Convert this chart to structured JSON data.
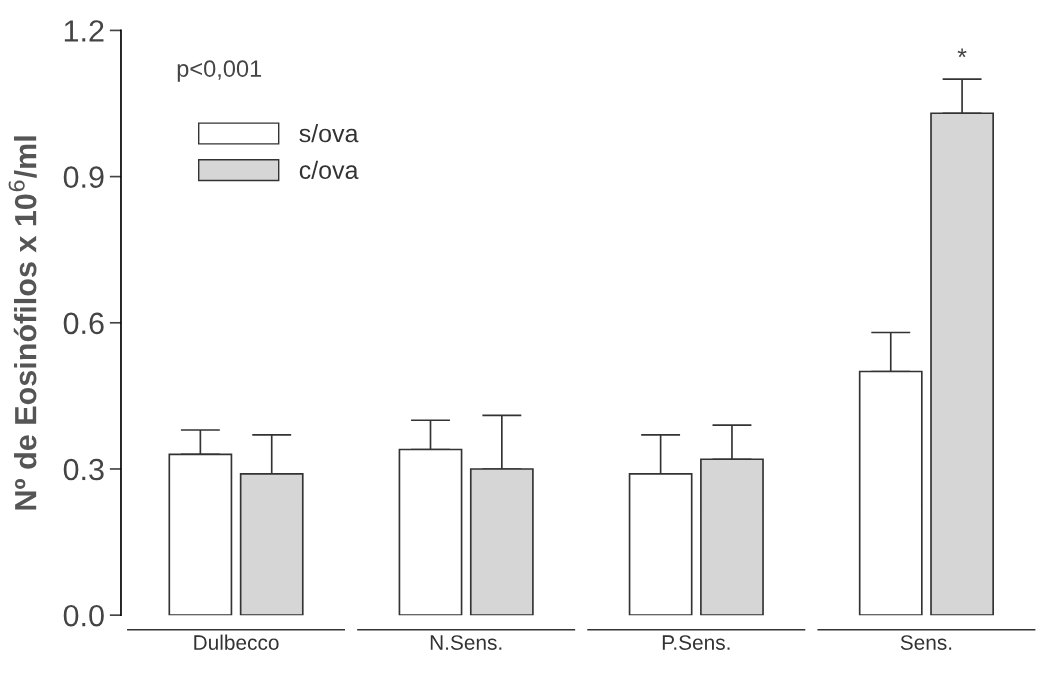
{
  "chart_data": {
    "type": "bar",
    "ylabel": "Nº de Eosinófilos x 10$^{6}$/ml",
    "categories": [
      "Dulbecco",
      "N.Sens.",
      "P.Sens.",
      "Sens."
    ],
    "series": [
      {
        "name": "s/ova",
        "color": "#ffffff",
        "values": [
          0.33,
          0.34,
          0.29,
          0.5
        ],
        "errors": [
          [
            0.33,
            0.38
          ],
          [
            0.34,
            0.4
          ],
          [
            0.29,
            0.37
          ],
          [
            0.5,
            0.58
          ]
        ]
      },
      {
        "name": "c/ova",
        "color": "#d6d6d6",
        "values": [
          0.29,
          0.3,
          0.32,
          1.03
        ],
        "errors": [
          [
            0.29,
            0.37
          ],
          [
            0.3,
            0.41
          ],
          [
            0.32,
            0.39
          ],
          [
            1.03,
            1.1
          ]
        ],
        "value_labels": [
          null,
          null,
          null,
          "*"
        ]
      }
    ],
    "ylim": [
      0,
      1.2
    ],
    "yticks": [
      {
        "value": 0,
        "label": "0.0"
      },
      {
        "value": 0.3,
        "label": "0.3"
      },
      {
        "value": 0.6,
        "label": "0.6"
      },
      {
        "value": 0.9,
        "label": "0.9"
      },
      {
        "value": 1.2,
        "label": "1.2"
      }
    ],
    "grid": false,
    "legend": "top left",
    "annotations": [
      "p<0,001"
    ]
  }
}
